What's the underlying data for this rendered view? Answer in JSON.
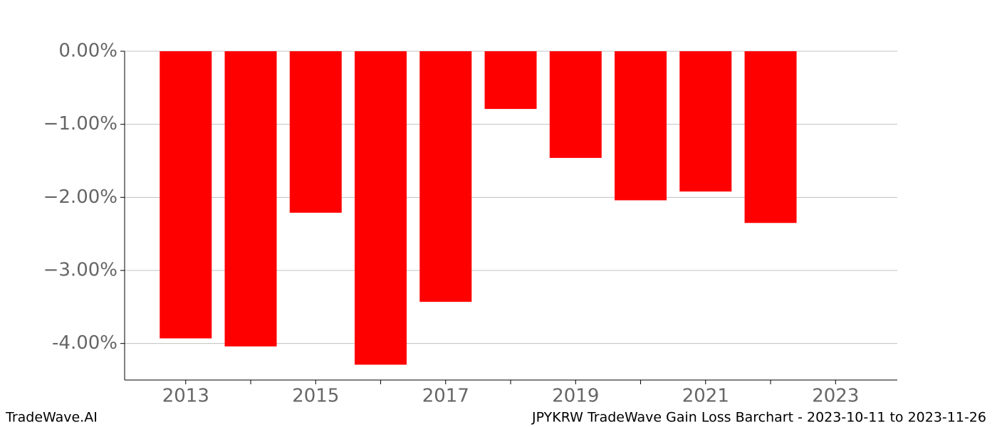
{
  "chart_data": {
    "type": "bar",
    "x": [
      2013,
      2014,
      2015,
      2016,
      2017,
      2018,
      2019,
      2020,
      2021,
      2022
    ],
    "values": [
      -3.93,
      -4.04,
      -2.21,
      -4.29,
      -3.43,
      -0.79,
      -1.46,
      -2.04,
      -1.92,
      -2.35
    ],
    "color": "#ff0000",
    "xlim": [
      2012.06,
      2023.95
    ],
    "xticks": [
      2013,
      2015,
      2017,
      2019,
      2021,
      2023
    ],
    "xminorticks": [
      2014,
      2016,
      2018,
      2020,
      2022
    ],
    "ylim": [
      -4.5,
      0
    ],
    "yticks": [
      {
        "value": 0,
        "label": "0.00%"
      },
      {
        "value": -1,
        "label": "−1.00%"
      },
      {
        "value": -2,
        "label": "−2.00%"
      },
      {
        "value": -3,
        "label": "−3.00%"
      },
      {
        "value": -4,
        "label": "-4.00%"
      }
    ],
    "grid": true,
    "footer_left": "TradeWave.AI",
    "footer_right": "JPYKRW TradeWave Gain Loss Barchart - 2023-10-11 to 2023-11-26"
  }
}
